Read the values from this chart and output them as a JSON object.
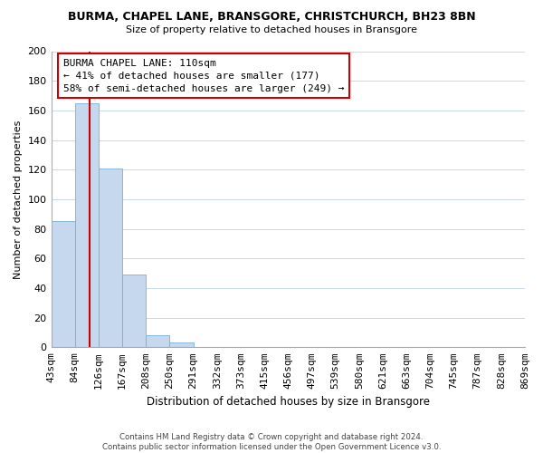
{
  "title": "BURMA, CHAPEL LANE, BRANSGORE, CHRISTCHURCH, BH23 8BN",
  "subtitle": "Size of property relative to detached houses in Bransgore",
  "xlabel": "Distribution of detached houses by size in Bransgore",
  "ylabel": "Number of detached properties",
  "bar_color": "#c5d8ee",
  "bar_edge_color": "#7badd4",
  "bin_labels": [
    "43sqm",
    "84sqm",
    "126sqm",
    "167sqm",
    "208sqm",
    "250sqm",
    "291sqm",
    "332sqm",
    "373sqm",
    "415sqm",
    "456sqm",
    "497sqm",
    "539sqm",
    "580sqm",
    "621sqm",
    "663sqm",
    "704sqm",
    "745sqm",
    "787sqm",
    "828sqm",
    "869sqm"
  ],
  "bar_heights": [
    85,
    165,
    121,
    49,
    8,
    3,
    0,
    0,
    0,
    0,
    0,
    0,
    0,
    0,
    0,
    0,
    0,
    0,
    0,
    0
  ],
  "ylim": [
    0,
    200
  ],
  "yticks": [
    0,
    20,
    40,
    60,
    80,
    100,
    120,
    140,
    160,
    180,
    200
  ],
  "annotation_box_text": "BURMA CHAPEL LANE: 110sqm\n← 41% of detached houses are smaller (177)\n58% of semi-detached houses are larger (249) →",
  "vline_color": "#cc0000",
  "footer_line1": "Contains HM Land Registry data © Crown copyright and database right 2024.",
  "footer_line2": "Contains public sector information licensed under the Open Government Licence v3.0.",
  "background_color": "#ffffff",
  "grid_color": "#c8d8e8"
}
